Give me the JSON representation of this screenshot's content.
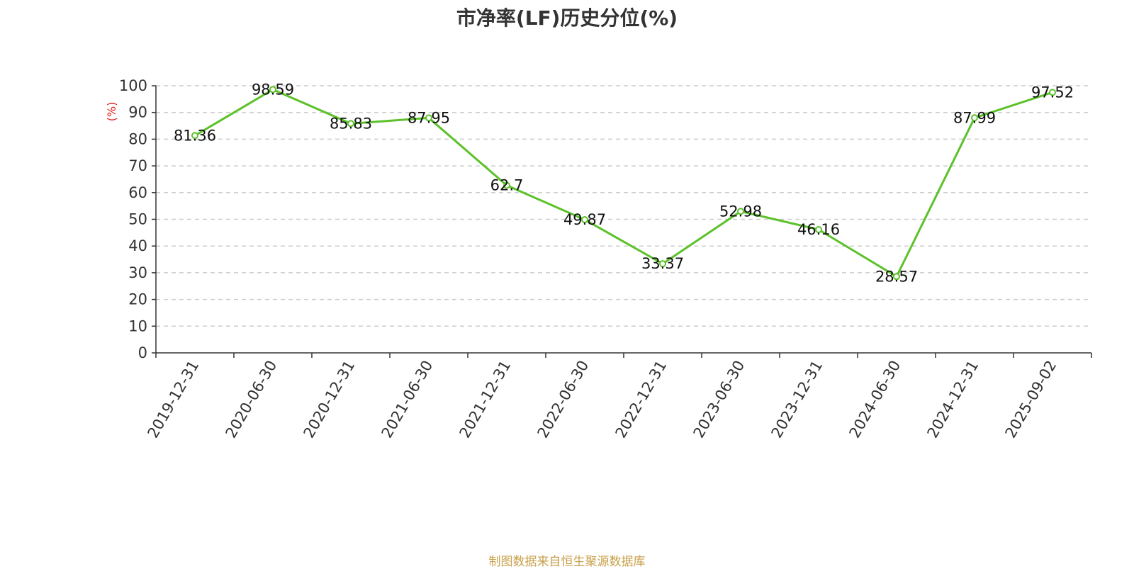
{
  "chart_data": {
    "type": "line",
    "title": "市净率(LF)历史分位(%)",
    "ylabel": "(%)",
    "ylim": [
      0,
      100
    ],
    "yticks": [
      0,
      10,
      20,
      30,
      40,
      50,
      60,
      70,
      80,
      90,
      100
    ],
    "grid": true,
    "categories": [
      "2019-12-31",
      "2020-06-30",
      "2020-12-31",
      "2021-06-30",
      "2021-12-31",
      "2022-06-30",
      "2022-12-31",
      "2023-06-30",
      "2023-12-31",
      "2024-06-30",
      "2024-12-31",
      "2025-09-02"
    ],
    "series": [
      {
        "values": [
          81.36,
          98.59,
          85.83,
          87.95,
          62.7,
          49.87,
          33.37,
          52.98,
          46.16,
          28.57,
          87.99,
          97.52
        ],
        "labels": [
          "81.36",
          "98.59",
          "85.83",
          "87.95",
          "62.7",
          "49.87",
          "33.37",
          "52.98",
          "46.16",
          "28.57",
          "87.99",
          "97.52"
        ]
      }
    ]
  },
  "source": "制图数据来自恒生聚源数据库",
  "colors": {
    "line": "#5cc12a",
    "grid": "#cccccc",
    "axis": "#333333",
    "unit": "#e0201a",
    "source": "#c8a04a"
  }
}
